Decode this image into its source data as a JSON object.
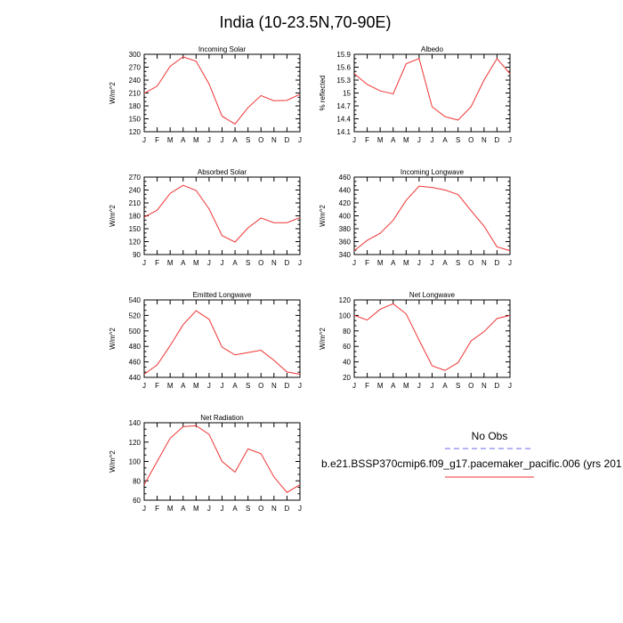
{
  "title": "India (10-23.5N,70-90E)",
  "legend": {
    "obs_label": "No Obs",
    "obs_color": "#8888ee",
    "model_label": "b.e21.BSSP370cmip6.f09_g17.pacemaker_pacific.006 (yrs 201",
    "model_color": "#ee3333"
  },
  "chart_data": [
    {
      "type": "line",
      "title": "Incoming Solar",
      "ylabel": "W/m^2",
      "ylim": [
        120,
        300
      ],
      "yticks": [
        120,
        150,
        180,
        210,
        240,
        270,
        300
      ],
      "yticklabels": [
        "120",
        "150",
        "180",
        "210",
        "240",
        "270",
        "300"
      ],
      "categories": [
        "J",
        "F",
        "M",
        "A",
        "M",
        "J",
        "J",
        "A",
        "S",
        "O",
        "N",
        "D",
        "J"
      ],
      "values": [
        209,
        226,
        272,
        294,
        284,
        231,
        156,
        138,
        176,
        204,
        192,
        193,
        207
      ]
    },
    {
      "type": "line",
      "title": "Albedo",
      "ylabel": "% reflected",
      "ylim": [
        14.1,
        15.9
      ],
      "yticks": [
        14.1,
        14.4,
        14.7,
        15.0,
        15.3,
        15.6,
        15.9
      ],
      "yticklabels": [
        "14.1",
        "14.4",
        "14.7",
        "15",
        "15.3",
        "15.6",
        "15.9"
      ],
      "categories": [
        "J",
        "F",
        "M",
        "A",
        "M",
        "J",
        "J",
        "A",
        "S",
        "O",
        "N",
        "D",
        "J"
      ],
      "values": [
        15.45,
        15.2,
        15.05,
        14.98,
        15.68,
        15.8,
        14.68,
        14.45,
        14.37,
        14.68,
        15.3,
        15.8,
        15.45
      ]
    },
    {
      "type": "line",
      "title": "Absorbed Solar",
      "ylabel": "W/m^2",
      "ylim": [
        90,
        270
      ],
      "yticks": [
        90,
        120,
        150,
        180,
        210,
        240,
        270
      ],
      "yticklabels": [
        "90",
        "120",
        "150",
        "180",
        "210",
        "240",
        "270"
      ],
      "categories": [
        "J",
        "F",
        "M",
        "A",
        "M",
        "J",
        "J",
        "A",
        "S",
        "O",
        "N",
        "D",
        "J"
      ],
      "values": [
        177,
        193,
        232,
        251,
        239,
        196,
        134,
        119,
        152,
        175,
        164,
        164,
        176
      ]
    },
    {
      "type": "line",
      "title": "Incoming Longwave",
      "ylabel": "W/m^2",
      "ylim": [
        340,
        460
      ],
      "yticks": [
        340,
        360,
        380,
        400,
        420,
        440,
        460
      ],
      "yticklabels": [
        "340",
        "360",
        "380",
        "400",
        "420",
        "440",
        "460"
      ],
      "categories": [
        "J",
        "F",
        "M",
        "A",
        "M",
        "J",
        "J",
        "A",
        "S",
        "O",
        "N",
        "D",
        "J"
      ],
      "values": [
        346,
        362,
        373,
        393,
        424,
        446,
        444,
        440,
        433,
        408,
        384,
        352,
        346
      ]
    },
    {
      "type": "line",
      "title": "Emitted Longwave",
      "ylabel": "W/m^2",
      "ylim": [
        440,
        540
      ],
      "yticks": [
        440,
        460,
        480,
        500,
        520,
        540
      ],
      "yticklabels": [
        "440",
        "460",
        "480",
        "500",
        "520",
        "540"
      ],
      "categories": [
        "J",
        "F",
        "M",
        "A",
        "M",
        "J",
        "J",
        "A",
        "S",
        "O",
        "N",
        "D",
        "J"
      ],
      "values": [
        444,
        456,
        481,
        508,
        526,
        515,
        479,
        469,
        472,
        475,
        462,
        447,
        444
      ]
    },
    {
      "type": "line",
      "title": "Net Longwave",
      "ylabel": "W/m^2",
      "ylim": [
        20,
        120
      ],
      "yticks": [
        20,
        40,
        60,
        80,
        100,
        120
      ],
      "yticklabels": [
        "20",
        "40",
        "60",
        "80",
        "100",
        "120"
      ],
      "categories": [
        "J",
        "F",
        "M",
        "A",
        "M",
        "J",
        "J",
        "A",
        "S",
        "O",
        "N",
        "D",
        "J"
      ],
      "values": [
        100,
        94,
        108,
        115,
        102,
        68,
        35,
        29,
        39,
        67,
        79,
        96,
        100
      ]
    },
    {
      "type": "line",
      "title": "Net Radiation",
      "ylabel": "W/m^2",
      "ylim": [
        60,
        140
      ],
      "yticks": [
        60,
        80,
        100,
        120,
        140
      ],
      "yticklabels": [
        "60",
        "80",
        "100",
        "120",
        "140"
      ],
      "categories": [
        "J",
        "F",
        "M",
        "A",
        "M",
        "J",
        "J",
        "A",
        "S",
        "O",
        "N",
        "D",
        "J"
      ],
      "values": [
        76,
        100,
        124,
        136,
        137,
        128,
        100,
        89,
        113,
        108,
        84,
        68,
        76
      ]
    }
  ]
}
